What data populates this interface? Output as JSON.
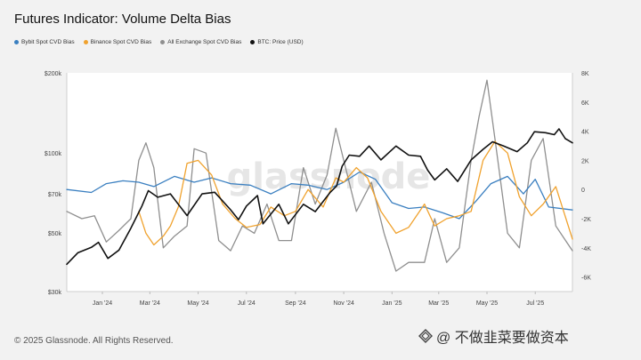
{
  "header": {
    "title": "Futures Indicator: Volume Delta Bias"
  },
  "footer": {
    "copyright": "© 2025 Glassnode. All Rights Reserved."
  },
  "brand": {
    "text": "@ 不做韭菜要做资本"
  },
  "watermark": {
    "text": "glassnode"
  },
  "colors": {
    "bybit": "#3a7fc0",
    "binance": "#f0a22e",
    "all_exchange": "#8f8f8f",
    "btc_price": "#111111",
    "background": "#f2f2f2",
    "plot_background": "#ffffff"
  },
  "chart_data": {
    "type": "line",
    "title": "Futures Indicator: Volume Delta Bias",
    "legend_position": "top-left",
    "grid": false,
    "legend": [
      "Bybit Spot CVD Bias",
      "Binance Spot CVD Bias",
      "All Exchange Spot CVD Bias",
      "BTC: Price (USD)"
    ],
    "x_ticks": [
      "Jan '24",
      "Mar '24",
      "May '24",
      "Jul '24",
      "Sep '24",
      "Nov '24",
      "Jan '25",
      "Mar '25",
      "May '25",
      "Jul '25"
    ],
    "x_range": [
      "2023-12-01",
      "2025-08-31"
    ],
    "y_left": {
      "scale": "log",
      "range": [
        30000,
        200000
      ],
      "ticks": [
        "$30k",
        "$50k",
        "$70k",
        "$100k",
        "$200k"
      ],
      "tick_values": [
        30000,
        50000,
        70000,
        100000,
        200000
      ]
    },
    "y_right": {
      "range": [
        -7000,
        8000
      ],
      "ticks": [
        "-6K",
        "-4K",
        "-2K",
        "0",
        "2K",
        "4K",
        "6K",
        "8K"
      ],
      "tick_values": [
        -6000,
        -4000,
        -2000,
        0,
        2000,
        4000,
        6000,
        8000
      ]
    },
    "series": [
      {
        "name": "BTC: Price (USD)",
        "axis": "left",
        "x": [
          "2023-12-01",
          "2023-12-15",
          "2024-01-01",
          "2024-01-10",
          "2024-01-22",
          "2024-02-05",
          "2024-02-20",
          "2024-03-05",
          "2024-03-13",
          "2024-03-25",
          "2024-04-10",
          "2024-04-20",
          "2024-05-01",
          "2024-05-20",
          "2024-06-05",
          "2024-06-25",
          "2024-07-05",
          "2024-07-15",
          "2024-07-29",
          "2024-08-05",
          "2024-08-25",
          "2024-09-06",
          "2024-09-25",
          "2024-10-10",
          "2024-10-29",
          "2024-11-06",
          "2024-11-13",
          "2024-11-22",
          "2024-12-05",
          "2024-12-17",
          "2025-01-01",
          "2025-01-20",
          "2025-02-05",
          "2025-02-20",
          "2025-03-01",
          "2025-03-10",
          "2025-03-25",
          "2025-04-08",
          "2025-04-25",
          "2025-05-10",
          "2025-05-22",
          "2025-06-05",
          "2025-06-22",
          "2025-07-05",
          "2025-07-14",
          "2025-07-28",
          "2025-08-08",
          "2025-08-14",
          "2025-08-22",
          "2025-08-31"
        ],
        "values": [
          38000,
          42000,
          44000,
          46000,
          40000,
          43000,
          52000,
          63000,
          72000,
          68000,
          70000,
          64000,
          58000,
          70000,
          71000,
          61000,
          56000,
          63000,
          69000,
          54000,
          64000,
          54000,
          64000,
          60000,
          71000,
          75000,
          89000,
          98000,
          97000,
          106000,
          94000,
          106000,
          98000,
          97000,
          86000,
          79000,
          87000,
          78000,
          94000,
          103000,
          110000,
          106000,
          101000,
          109000,
          120000,
          119000,
          117000,
          123000,
          113000,
          109000
        ]
      },
      {
        "name": "Bybit Spot CVD Bias",
        "axis": "right",
        "x": [
          "2023-12-01",
          "2024-01-01",
          "2024-01-20",
          "2024-02-10",
          "2024-03-01",
          "2024-03-20",
          "2024-04-15",
          "2024-05-10",
          "2024-06-01",
          "2024-06-25",
          "2024-07-20",
          "2024-08-15",
          "2024-09-10",
          "2024-10-01",
          "2024-10-25",
          "2024-11-15",
          "2024-12-05",
          "2024-12-25",
          "2025-01-15",
          "2025-02-05",
          "2025-02-25",
          "2025-03-20",
          "2025-04-10",
          "2025-05-01",
          "2025-05-20",
          "2025-06-10",
          "2025-06-30",
          "2025-07-15",
          "2025-08-01",
          "2025-08-31"
        ],
        "values": [
          0,
          -200,
          400,
          600,
          500,
          200,
          900,
          500,
          800,
          400,
          300,
          -300,
          400,
          300,
          0,
          500,
          1200,
          700,
          -900,
          -1300,
          -1200,
          -1600,
          -2000,
          -800,
          400,
          900,
          -300,
          700,
          -1200,
          -1400
        ]
      },
      {
        "name": "Binance Spot CVD Bias",
        "axis": "right",
        "x": [
          "2024-03-01",
          "2024-03-10",
          "2024-03-20",
          "2024-04-01",
          "2024-04-10",
          "2024-04-20",
          "2024-05-01",
          "2024-05-15",
          "2024-06-01",
          "2024-06-15",
          "2024-07-01",
          "2024-07-15",
          "2024-08-01",
          "2024-08-15",
          "2024-09-01",
          "2024-09-15",
          "2024-10-01",
          "2024-10-20",
          "2024-11-05",
          "2024-11-15",
          "2024-12-01",
          "2024-12-15",
          "2025-01-01",
          "2025-01-20",
          "2025-02-05",
          "2025-02-25",
          "2025-03-10",
          "2025-03-25",
          "2025-04-10",
          "2025-04-25",
          "2025-05-10",
          "2025-05-25",
          "2025-06-10",
          "2025-06-25",
          "2025-07-10",
          "2025-07-25",
          "2025-08-10",
          "2025-08-31"
        ],
        "values": [
          -1500,
          -3000,
          -3800,
          -3200,
          -2500,
          -1200,
          1800,
          2000,
          1000,
          -1000,
          -2000,
          -2600,
          -2400,
          -1200,
          -1800,
          -1500,
          0,
          -1200,
          800,
          500,
          1500,
          800,
          -1500,
          -3000,
          -2600,
          -1000,
          -2500,
          -2000,
          -1800,
          -1500,
          2000,
          3300,
          2500,
          -500,
          -1800,
          -1000,
          200,
          -3400
        ]
      },
      {
        "name": "All Exchange Spot CVD Bias",
        "axis": "right",
        "x": [
          "2023-12-01",
          "2023-12-20",
          "2024-01-05",
          "2024-01-20",
          "2024-02-05",
          "2024-02-20",
          "2024-03-01",
          "2024-03-10",
          "2024-03-20",
          "2024-04-01",
          "2024-04-15",
          "2024-05-01",
          "2024-05-10",
          "2024-05-25",
          "2024-06-10",
          "2024-06-25",
          "2024-07-10",
          "2024-07-25",
          "2024-08-10",
          "2024-08-25",
          "2024-09-10",
          "2024-09-25",
          "2024-10-10",
          "2024-10-25",
          "2024-11-05",
          "2024-11-15",
          "2024-12-01",
          "2024-12-20",
          "2025-01-05",
          "2025-01-20",
          "2025-02-05",
          "2025-02-25",
          "2025-03-10",
          "2025-03-25",
          "2025-04-10",
          "2025-04-25",
          "2025-05-05",
          "2025-05-15",
          "2025-05-25",
          "2025-06-10",
          "2025-06-25",
          "2025-07-10",
          "2025-07-25",
          "2025-08-10",
          "2025-08-31"
        ],
        "values": [
          -1500,
          -2000,
          -1800,
          -3600,
          -2800,
          -2000,
          2000,
          3200,
          1500,
          -4000,
          -3200,
          -2500,
          2800,
          2500,
          -3500,
          -4200,
          -2500,
          -3000,
          -1000,
          -3500,
          -3500,
          1500,
          -1000,
          1000,
          4200,
          2000,
          -1500,
          500,
          -3000,
          -5600,
          -5000,
          -5000,
          -2000,
          -5000,
          -4000,
          2000,
          5000,
          7500,
          3500,
          -3000,
          -4000,
          2000,
          3500,
          -2500,
          -4200
        ]
      }
    ]
  }
}
